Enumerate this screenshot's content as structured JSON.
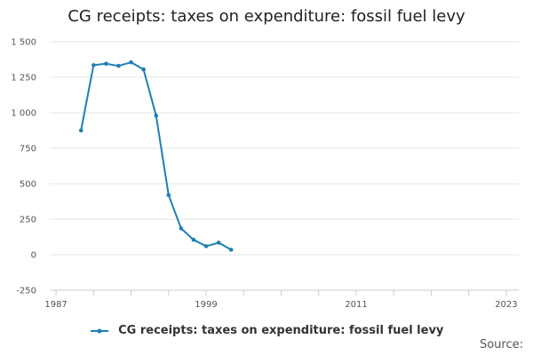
{
  "colors": {
    "series": "#1f7fb4",
    "grid": "#e6e6e6",
    "axis": "#cccccc"
  },
  "chart_data": {
    "type": "line",
    "title": "CG receipts: taxes on expenditure: fossil fuel levy",
    "xlabel": "",
    "ylabel": "",
    "xlim": [
      1986,
      2024
    ],
    "ylim": [
      -250,
      1500
    ],
    "x_ticks": [
      1987,
      1999,
      2011,
      2023
    ],
    "x_tick_labels": [
      "1987",
      "1999",
      "2011",
      "2023"
    ],
    "y_ticks": [
      -250,
      0,
      250,
      500,
      750,
      1000,
      1250,
      1500
    ],
    "y_tick_labels": [
      "-250",
      "0",
      "250",
      "500",
      "750",
      "1 000",
      "1 250",
      "1 500"
    ],
    "grid": true,
    "legend_position": "bottom",
    "series": [
      {
        "name": "CG receipts: taxes on expenditure: fossil fuel levy",
        "x": [
          1989,
          1990,
          1991,
          1992,
          1993,
          1994,
          1995,
          1996,
          1997,
          1998,
          1999,
          2000,
          2001,
          2002
        ],
        "values": [
          875,
          1335,
          1345,
          1330,
          1355,
          1305,
          980,
          420,
          185,
          105,
          60,
          85,
          35,
          null
        ]
      }
    ]
  },
  "legend": {
    "label": "CG receipts: taxes on expenditure: fossil fuel levy"
  },
  "source_label": "Source:"
}
